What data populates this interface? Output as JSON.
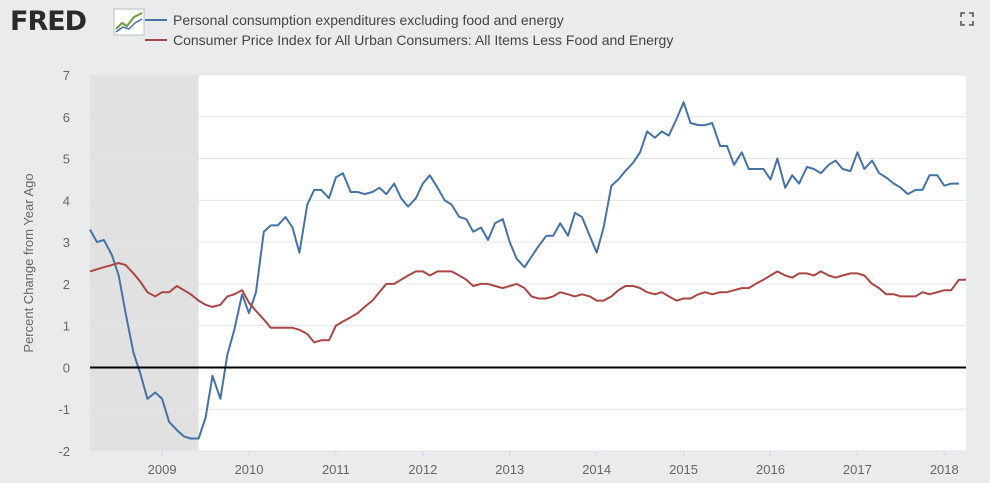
{
  "logo": {
    "text": "FRED",
    "icon": "fred-graph-icon"
  },
  "colors": {
    "series1": "#4572a7",
    "series2": "#aa4643",
    "zero_line": "#000000",
    "recession": "#e1e1e1",
    "plot_bg": "#ffffff",
    "grid": "#e6e6e6",
    "text": "#666666"
  },
  "expand_icon": "expand-icon",
  "chart_data": {
    "type": "line",
    "title": "",
    "ylabel": "Percent Change from Year Ago",
    "xlabel": "",
    "ylim": [
      -2,
      7
    ],
    "yticks": [
      -2,
      -1,
      0,
      1,
      2,
      3,
      4,
      5,
      6,
      7
    ],
    "xlim": [
      2008.17,
      2018.25
    ],
    "xticks": [
      2009,
      2010,
      2011,
      2012,
      2013,
      2014,
      2015,
      2016,
      2017,
      2018
    ],
    "grid": true,
    "legend_position": "top-left",
    "zero_line": 0,
    "recession_shading": [
      [
        2008.17,
        2009.42
      ]
    ],
    "series": [
      {
        "name": "Personal consumption expenditures excluding food and energy",
        "color": "#4572a7",
        "points": [
          [
            2008.17,
            3.3
          ],
          [
            2008.25,
            3.0
          ],
          [
            2008.33,
            3.05
          ],
          [
            2008.42,
            2.7
          ],
          [
            2008.5,
            2.2
          ],
          [
            2008.58,
            1.3
          ],
          [
            2008.67,
            0.35
          ],
          [
            2008.75,
            -0.15
          ],
          [
            2008.83,
            -0.75
          ],
          [
            2008.92,
            -0.6
          ],
          [
            2009.0,
            -0.75
          ],
          [
            2009.08,
            -1.3
          ],
          [
            2009.17,
            -1.5
          ],
          [
            2009.25,
            -1.65
          ],
          [
            2009.33,
            -1.7
          ],
          [
            2009.42,
            -1.7
          ],
          [
            2009.5,
            -1.2
          ],
          [
            2009.58,
            -0.2
          ],
          [
            2009.67,
            -0.75
          ],
          [
            2009.75,
            0.3
          ],
          [
            2009.83,
            0.9
          ],
          [
            2009.92,
            1.75
          ],
          [
            2010.0,
            1.3
          ],
          [
            2010.08,
            1.8
          ],
          [
            2010.17,
            3.25
          ],
          [
            2010.25,
            3.4
          ],
          [
            2010.33,
            3.4
          ],
          [
            2010.42,
            3.6
          ],
          [
            2010.5,
            3.35
          ],
          [
            2010.58,
            2.75
          ],
          [
            2010.67,
            3.9
          ],
          [
            2010.75,
            4.25
          ],
          [
            2010.83,
            4.25
          ],
          [
            2010.92,
            4.05
          ],
          [
            2011.0,
            4.55
          ],
          [
            2011.08,
            4.65
          ],
          [
            2011.17,
            4.2
          ],
          [
            2011.25,
            4.2
          ],
          [
            2011.33,
            4.15
          ],
          [
            2011.42,
            4.2
          ],
          [
            2011.5,
            4.3
          ],
          [
            2011.58,
            4.15
          ],
          [
            2011.67,
            4.4
          ],
          [
            2011.75,
            4.05
          ],
          [
            2011.83,
            3.85
          ],
          [
            2011.92,
            4.05
          ],
          [
            2012.0,
            4.4
          ],
          [
            2012.08,
            4.6
          ],
          [
            2012.17,
            4.3
          ],
          [
            2012.25,
            4.0
          ],
          [
            2012.33,
            3.9
          ],
          [
            2012.42,
            3.6
          ],
          [
            2012.5,
            3.55
          ],
          [
            2012.58,
            3.25
          ],
          [
            2012.67,
            3.35
          ],
          [
            2012.75,
            3.05
          ],
          [
            2012.83,
            3.45
          ],
          [
            2012.92,
            3.55
          ],
          [
            2013.0,
            3.0
          ],
          [
            2013.08,
            2.6
          ],
          [
            2013.17,
            2.4
          ],
          [
            2013.25,
            2.65
          ],
          [
            2013.33,
            2.9
          ],
          [
            2013.42,
            3.15
          ],
          [
            2013.5,
            3.15
          ],
          [
            2013.58,
            3.45
          ],
          [
            2013.67,
            3.15
          ],
          [
            2013.75,
            3.7
          ],
          [
            2013.83,
            3.6
          ],
          [
            2013.92,
            3.15
          ],
          [
            2014.0,
            2.75
          ],
          [
            2014.08,
            3.35
          ],
          [
            2014.17,
            4.35
          ],
          [
            2014.25,
            4.5
          ],
          [
            2014.33,
            4.7
          ],
          [
            2014.42,
            4.9
          ],
          [
            2014.5,
            5.15
          ],
          [
            2014.58,
            5.65
          ],
          [
            2014.67,
            5.5
          ],
          [
            2014.75,
            5.65
          ],
          [
            2014.83,
            5.55
          ],
          [
            2014.92,
            5.95
          ],
          [
            2015.0,
            6.35
          ],
          [
            2015.08,
            5.85
          ],
          [
            2015.17,
            5.8
          ],
          [
            2015.25,
            5.8
          ],
          [
            2015.33,
            5.85
          ],
          [
            2015.42,
            5.3
          ],
          [
            2015.5,
            5.3
          ],
          [
            2015.58,
            4.85
          ],
          [
            2015.67,
            5.15
          ],
          [
            2015.75,
            4.75
          ],
          [
            2015.83,
            4.75
          ],
          [
            2015.92,
            4.75
          ],
          [
            2016.0,
            4.5
          ],
          [
            2016.08,
            5.0
          ],
          [
            2016.17,
            4.3
          ],
          [
            2016.25,
            4.6
          ],
          [
            2016.33,
            4.4
          ],
          [
            2016.42,
            4.8
          ],
          [
            2016.5,
            4.75
          ],
          [
            2016.58,
            4.65
          ],
          [
            2016.67,
            4.85
          ],
          [
            2016.75,
            4.95
          ],
          [
            2016.83,
            4.75
          ],
          [
            2016.92,
            4.7
          ],
          [
            2017.0,
            5.15
          ],
          [
            2017.08,
            4.75
          ],
          [
            2017.17,
            4.95
          ],
          [
            2017.25,
            4.65
          ],
          [
            2017.33,
            4.55
          ],
          [
            2017.42,
            4.4
          ],
          [
            2017.5,
            4.3
          ],
          [
            2017.58,
            4.15
          ],
          [
            2017.67,
            4.25
          ],
          [
            2017.75,
            4.25
          ],
          [
            2017.83,
            4.6
          ],
          [
            2017.92,
            4.6
          ],
          [
            2018.0,
            4.35
          ],
          [
            2018.08,
            4.4
          ],
          [
            2018.17,
            4.4
          ]
        ]
      },
      {
        "name": "Consumer Price Index for All Urban Consumers: All Items Less Food and Energy",
        "color": "#aa4643",
        "points": [
          [
            2008.17,
            2.3
          ],
          [
            2008.25,
            2.35
          ],
          [
            2008.33,
            2.4
          ],
          [
            2008.42,
            2.45
          ],
          [
            2008.5,
            2.5
          ],
          [
            2008.58,
            2.45
          ],
          [
            2008.67,
            2.25
          ],
          [
            2008.75,
            2.05
          ],
          [
            2008.83,
            1.8
          ],
          [
            2008.92,
            1.7
          ],
          [
            2009.0,
            1.8
          ],
          [
            2009.08,
            1.8
          ],
          [
            2009.17,
            1.95
          ],
          [
            2009.25,
            1.85
          ],
          [
            2009.33,
            1.75
          ],
          [
            2009.42,
            1.6
          ],
          [
            2009.5,
            1.5
          ],
          [
            2009.58,
            1.45
          ],
          [
            2009.67,
            1.5
          ],
          [
            2009.75,
            1.7
          ],
          [
            2009.83,
            1.75
          ],
          [
            2009.92,
            1.85
          ],
          [
            2010.0,
            1.55
          ],
          [
            2010.08,
            1.35
          ],
          [
            2010.17,
            1.15
          ],
          [
            2010.25,
            0.95
          ],
          [
            2010.33,
            0.95
          ],
          [
            2010.42,
            0.95
          ],
          [
            2010.5,
            0.95
          ],
          [
            2010.58,
            0.9
          ],
          [
            2010.67,
            0.8
          ],
          [
            2010.75,
            0.6
          ],
          [
            2010.83,
            0.65
          ],
          [
            2010.92,
            0.65
          ],
          [
            2011.0,
            1.0
          ],
          [
            2011.08,
            1.1
          ],
          [
            2011.17,
            1.2
          ],
          [
            2011.25,
            1.3
          ],
          [
            2011.33,
            1.45
          ],
          [
            2011.42,
            1.6
          ],
          [
            2011.5,
            1.8
          ],
          [
            2011.58,
            2.0
          ],
          [
            2011.67,
            2.0
          ],
          [
            2011.75,
            2.1
          ],
          [
            2011.83,
            2.2
          ],
          [
            2011.92,
            2.3
          ],
          [
            2012.0,
            2.3
          ],
          [
            2012.08,
            2.2
          ],
          [
            2012.17,
            2.3
          ],
          [
            2012.25,
            2.3
          ],
          [
            2012.33,
            2.3
          ],
          [
            2012.42,
            2.2
          ],
          [
            2012.5,
            2.1
          ],
          [
            2012.58,
            1.95
          ],
          [
            2012.67,
            2.0
          ],
          [
            2012.75,
            2.0
          ],
          [
            2012.83,
            1.95
          ],
          [
            2012.92,
            1.9
          ],
          [
            2013.0,
            1.95
          ],
          [
            2013.08,
            2.0
          ],
          [
            2013.17,
            1.9
          ],
          [
            2013.25,
            1.7
          ],
          [
            2013.33,
            1.65
          ],
          [
            2013.42,
            1.65
          ],
          [
            2013.5,
            1.7
          ],
          [
            2013.58,
            1.8
          ],
          [
            2013.67,
            1.75
          ],
          [
            2013.75,
            1.7
          ],
          [
            2013.83,
            1.75
          ],
          [
            2013.92,
            1.7
          ],
          [
            2014.0,
            1.6
          ],
          [
            2014.08,
            1.6
          ],
          [
            2014.17,
            1.7
          ],
          [
            2014.25,
            1.85
          ],
          [
            2014.33,
            1.95
          ],
          [
            2014.42,
            1.95
          ],
          [
            2014.5,
            1.9
          ],
          [
            2014.58,
            1.8
          ],
          [
            2014.67,
            1.75
          ],
          [
            2014.75,
            1.8
          ],
          [
            2014.83,
            1.7
          ],
          [
            2014.92,
            1.6
          ],
          [
            2015.0,
            1.65
          ],
          [
            2015.08,
            1.65
          ],
          [
            2015.17,
            1.75
          ],
          [
            2015.25,
            1.8
          ],
          [
            2015.33,
            1.75
          ],
          [
            2015.42,
            1.8
          ],
          [
            2015.5,
            1.8
          ],
          [
            2015.58,
            1.85
          ],
          [
            2015.67,
            1.9
          ],
          [
            2015.75,
            1.9
          ],
          [
            2015.83,
            2.0
          ],
          [
            2015.92,
            2.1
          ],
          [
            2016.0,
            2.2
          ],
          [
            2016.08,
            2.3
          ],
          [
            2016.17,
            2.2
          ],
          [
            2016.25,
            2.15
          ],
          [
            2016.33,
            2.25
          ],
          [
            2016.42,
            2.25
          ],
          [
            2016.5,
            2.2
          ],
          [
            2016.58,
            2.3
          ],
          [
            2016.67,
            2.2
          ],
          [
            2016.75,
            2.15
          ],
          [
            2016.83,
            2.2
          ],
          [
            2016.92,
            2.25
          ],
          [
            2017.0,
            2.25
          ],
          [
            2017.08,
            2.2
          ],
          [
            2017.17,
            2.0
          ],
          [
            2017.25,
            1.9
          ],
          [
            2017.33,
            1.75
          ],
          [
            2017.42,
            1.75
          ],
          [
            2017.5,
            1.7
          ],
          [
            2017.58,
            1.7
          ],
          [
            2017.67,
            1.7
          ],
          [
            2017.75,
            1.8
          ],
          [
            2017.83,
            1.75
          ],
          [
            2017.92,
            1.8
          ],
          [
            2018.0,
            1.85
          ],
          [
            2018.08,
            1.85
          ],
          [
            2018.17,
            2.1
          ],
          [
            2018.25,
            2.1
          ]
        ]
      }
    ]
  }
}
